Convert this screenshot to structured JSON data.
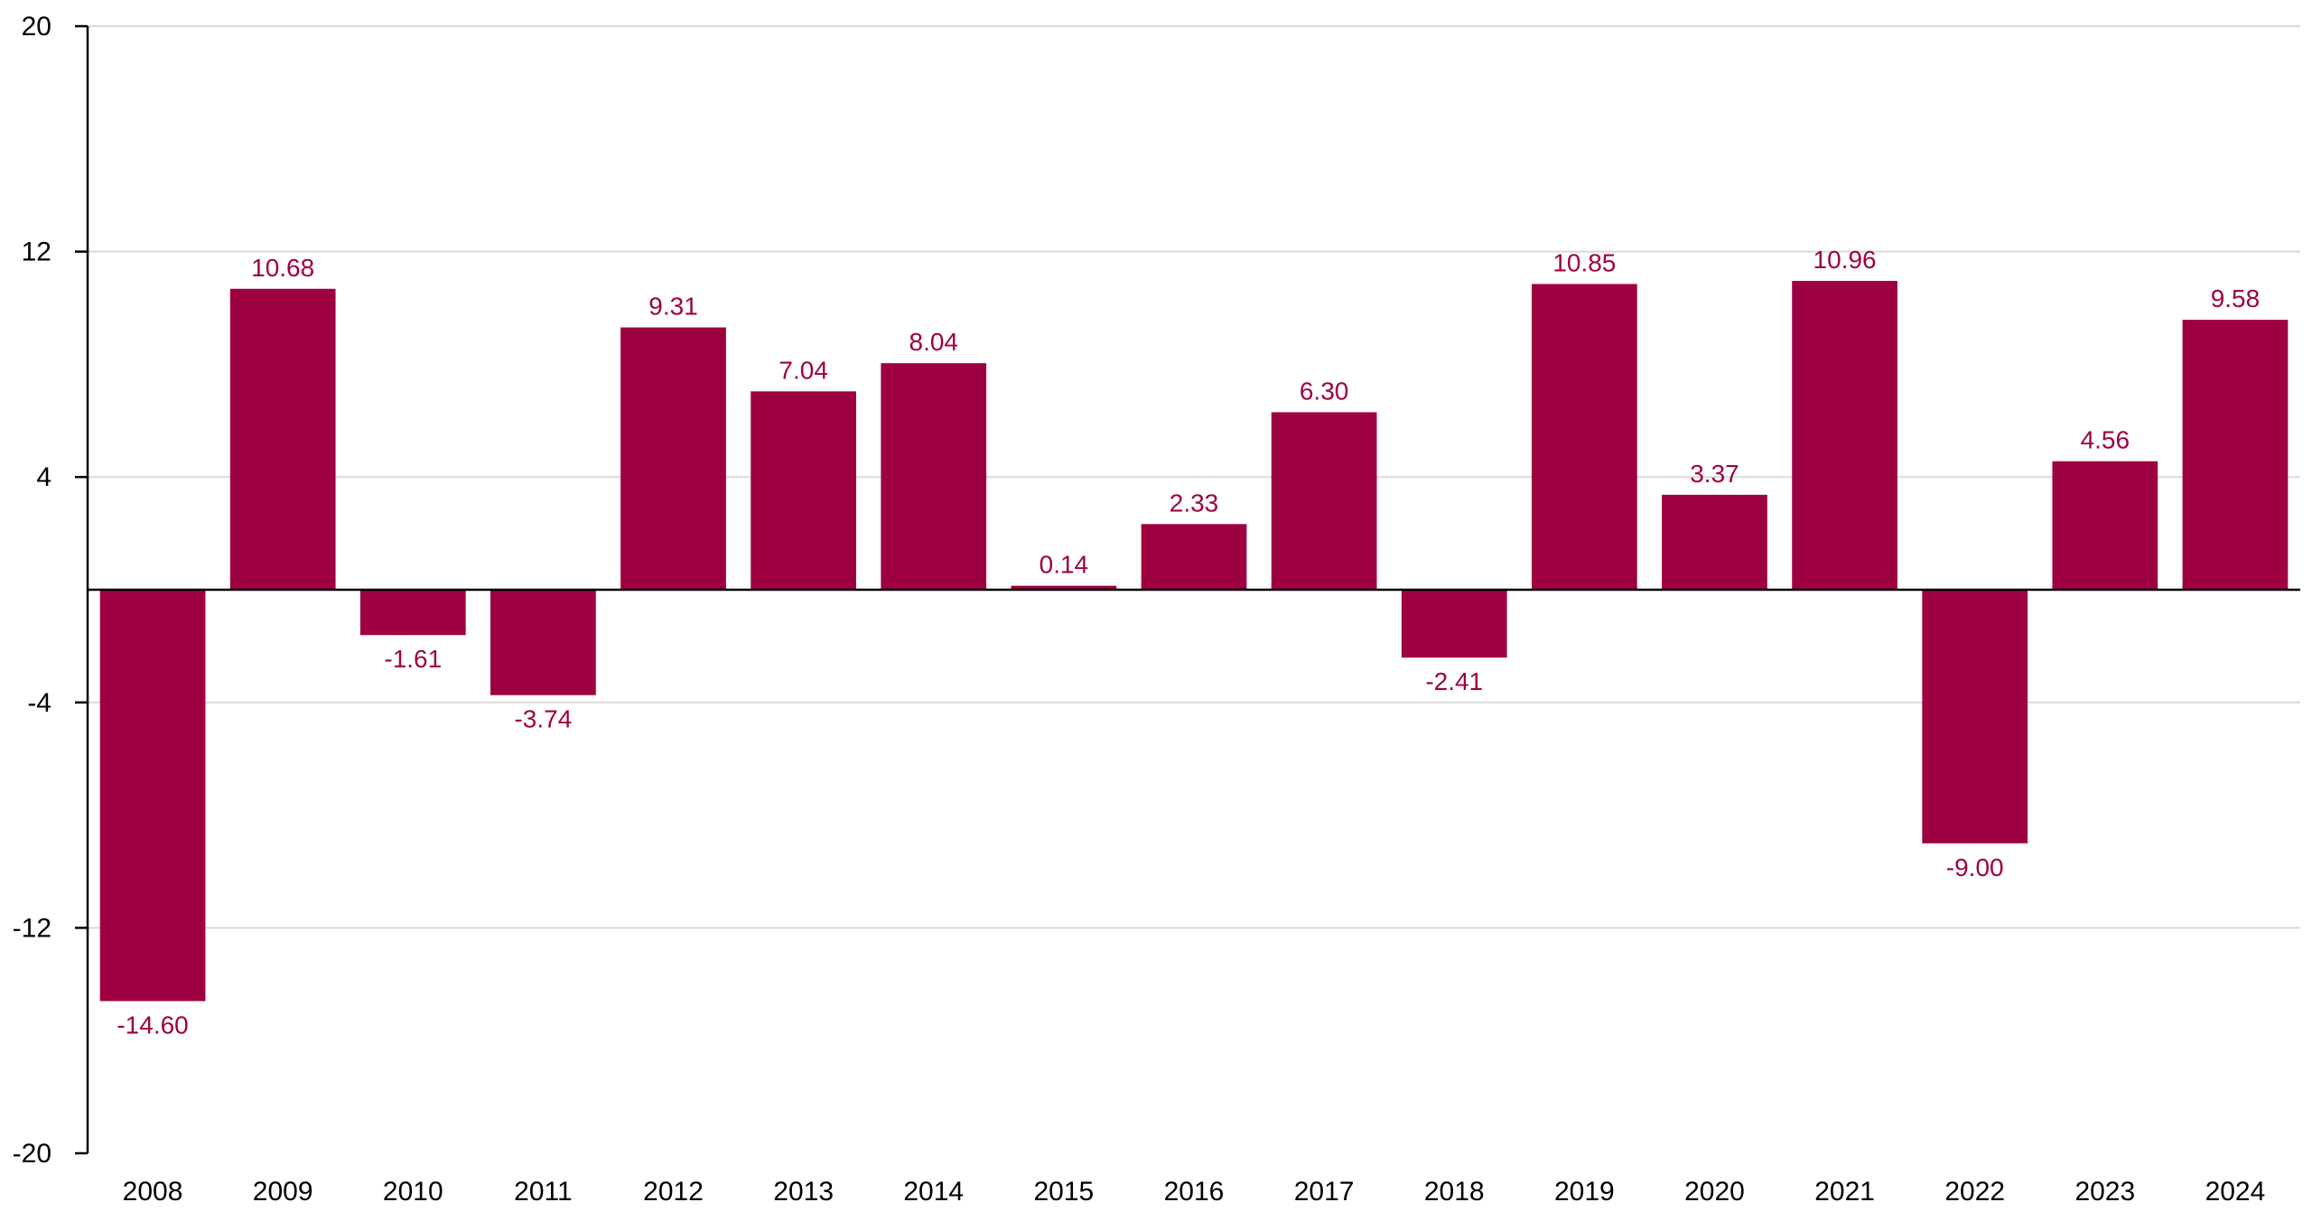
{
  "colors": {
    "bar": "#9e0142",
    "label": "#9e0142",
    "grid": "#d9d9d9",
    "axis": "#000000"
  },
  "chart_data": {
    "type": "bar",
    "title": "",
    "xlabel": "",
    "ylabel": "",
    "categories": [
      "2008",
      "2009",
      "2010",
      "2011",
      "2012",
      "2013",
      "2014",
      "2015",
      "2016",
      "2017",
      "2018",
      "2019",
      "2020",
      "2021",
      "2022",
      "2023",
      "2024"
    ],
    "values": [
      -14.6,
      10.68,
      -1.61,
      -3.74,
      9.31,
      7.04,
      8.04,
      0.14,
      2.33,
      6.3,
      -2.41,
      10.85,
      3.37,
      10.96,
      -9.0,
      4.56,
      9.58
    ],
    "value_labels": [
      "-14.60",
      "10.68",
      "-1.61",
      "-3.74",
      "9.31",
      "7.04",
      "8.04",
      "0.14",
      "2.33",
      "6.30",
      "-2.41",
      "10.85",
      "3.37",
      "10.96",
      "-9.00",
      "4.56",
      "9.58"
    ],
    "ylim": [
      -20,
      20
    ],
    "yticks": [
      20,
      12,
      4,
      -4,
      -12,
      -20
    ],
    "ytick_labels": [
      "20",
      "12",
      "4",
      "-4",
      "-12",
      "-20"
    ],
    "grid": true,
    "legend": "none"
  }
}
